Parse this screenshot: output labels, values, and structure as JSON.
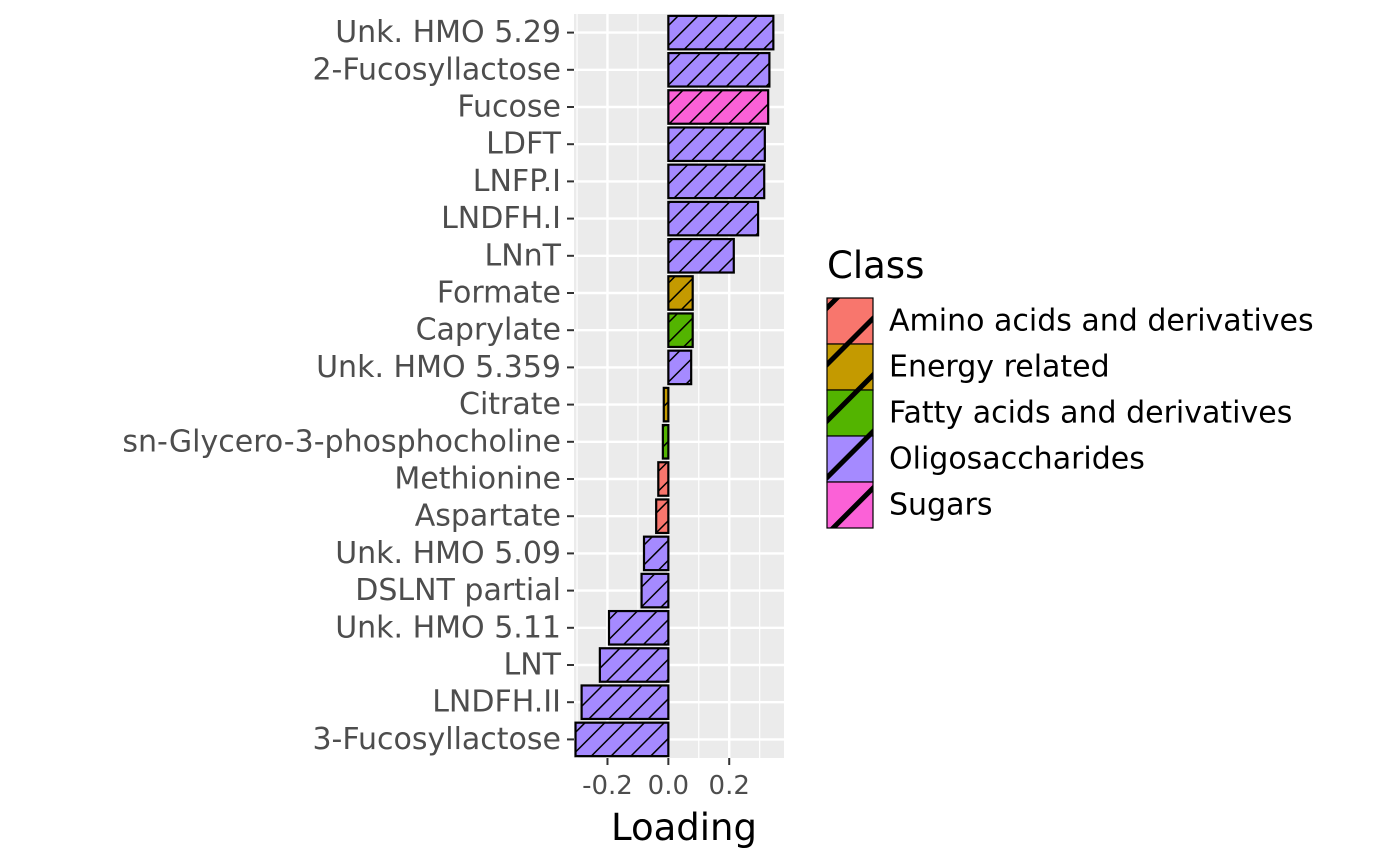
{
  "chart_data": {
    "type": "bar",
    "orientation": "horizontal",
    "title": "",
    "xlabel": "Loading",
    "ylabel": "",
    "xlim": [
      -0.31,
      0.38
    ],
    "xticks": [
      {
        "value": -0.2,
        "label": "-0.2"
      },
      {
        "value": 0.0,
        "label": "0.0"
      },
      {
        "value": 0.2,
        "label": "0.2"
      }
    ],
    "xtick_labels_text": "-0.20.0 0.2",
    "grid": true,
    "bar_pattern": "diagonal-stripes",
    "categories": [
      "Unk. HMO 5.29",
      "2-Fucosyllactose",
      "Fucose",
      "LDFT",
      "LNFP.I",
      "LNDFH.I",
      "LNnT",
      "Formate",
      "Caprylate",
      "Unk. HMO 5.359",
      "Citrate",
      "sn-Glycero-3-phosphocholine",
      "Methionine",
      "Aspartate",
      "Unk. HMO 5.09",
      "DSLNT partial",
      "Unk. HMO 5.11",
      "LNT",
      "LNDFH.II",
      "3-Fucosyllactose"
    ],
    "values": [
      0.345,
      0.332,
      0.328,
      0.317,
      0.315,
      0.295,
      0.215,
      0.08,
      0.08,
      0.075,
      -0.015,
      -0.018,
      -0.033,
      -0.04,
      -0.08,
      -0.088,
      -0.195,
      -0.225,
      -0.285,
      -0.305
    ],
    "classes": [
      "Oligosaccharides",
      "Oligosaccharides",
      "Sugars",
      "Oligosaccharides",
      "Oligosaccharides",
      "Oligosaccharides",
      "Oligosaccharides",
      "Energy related",
      "Fatty acids and derivatives",
      "Oligosaccharides",
      "Energy related",
      "Fatty acids and derivatives",
      "Amino acids and derivatives",
      "Amino acids and derivatives",
      "Oligosaccharides",
      "Oligosaccharides",
      "Oligosaccharides",
      "Oligosaccharides",
      "Oligosaccharides",
      "Oligosaccharides"
    ],
    "legend": {
      "title": "Class",
      "placement": "right",
      "items": [
        {
          "label": "Amino acids and derivatives",
          "color": "#F8766D"
        },
        {
          "label": "Energy related",
          "color": "#C49A00"
        },
        {
          "label": "Fatty acids and derivatives",
          "color": "#53B400"
        },
        {
          "label": "Oligosaccharides",
          "color": "#A58AFF"
        },
        {
          "label": "Sugars",
          "color": "#FB61D7"
        }
      ]
    },
    "colors": {
      "panel_background": "#EBEBEB",
      "grid_major": "#FFFFFF",
      "bar_outline": "#000000",
      "tick_label": "#4D4D4D"
    }
  }
}
